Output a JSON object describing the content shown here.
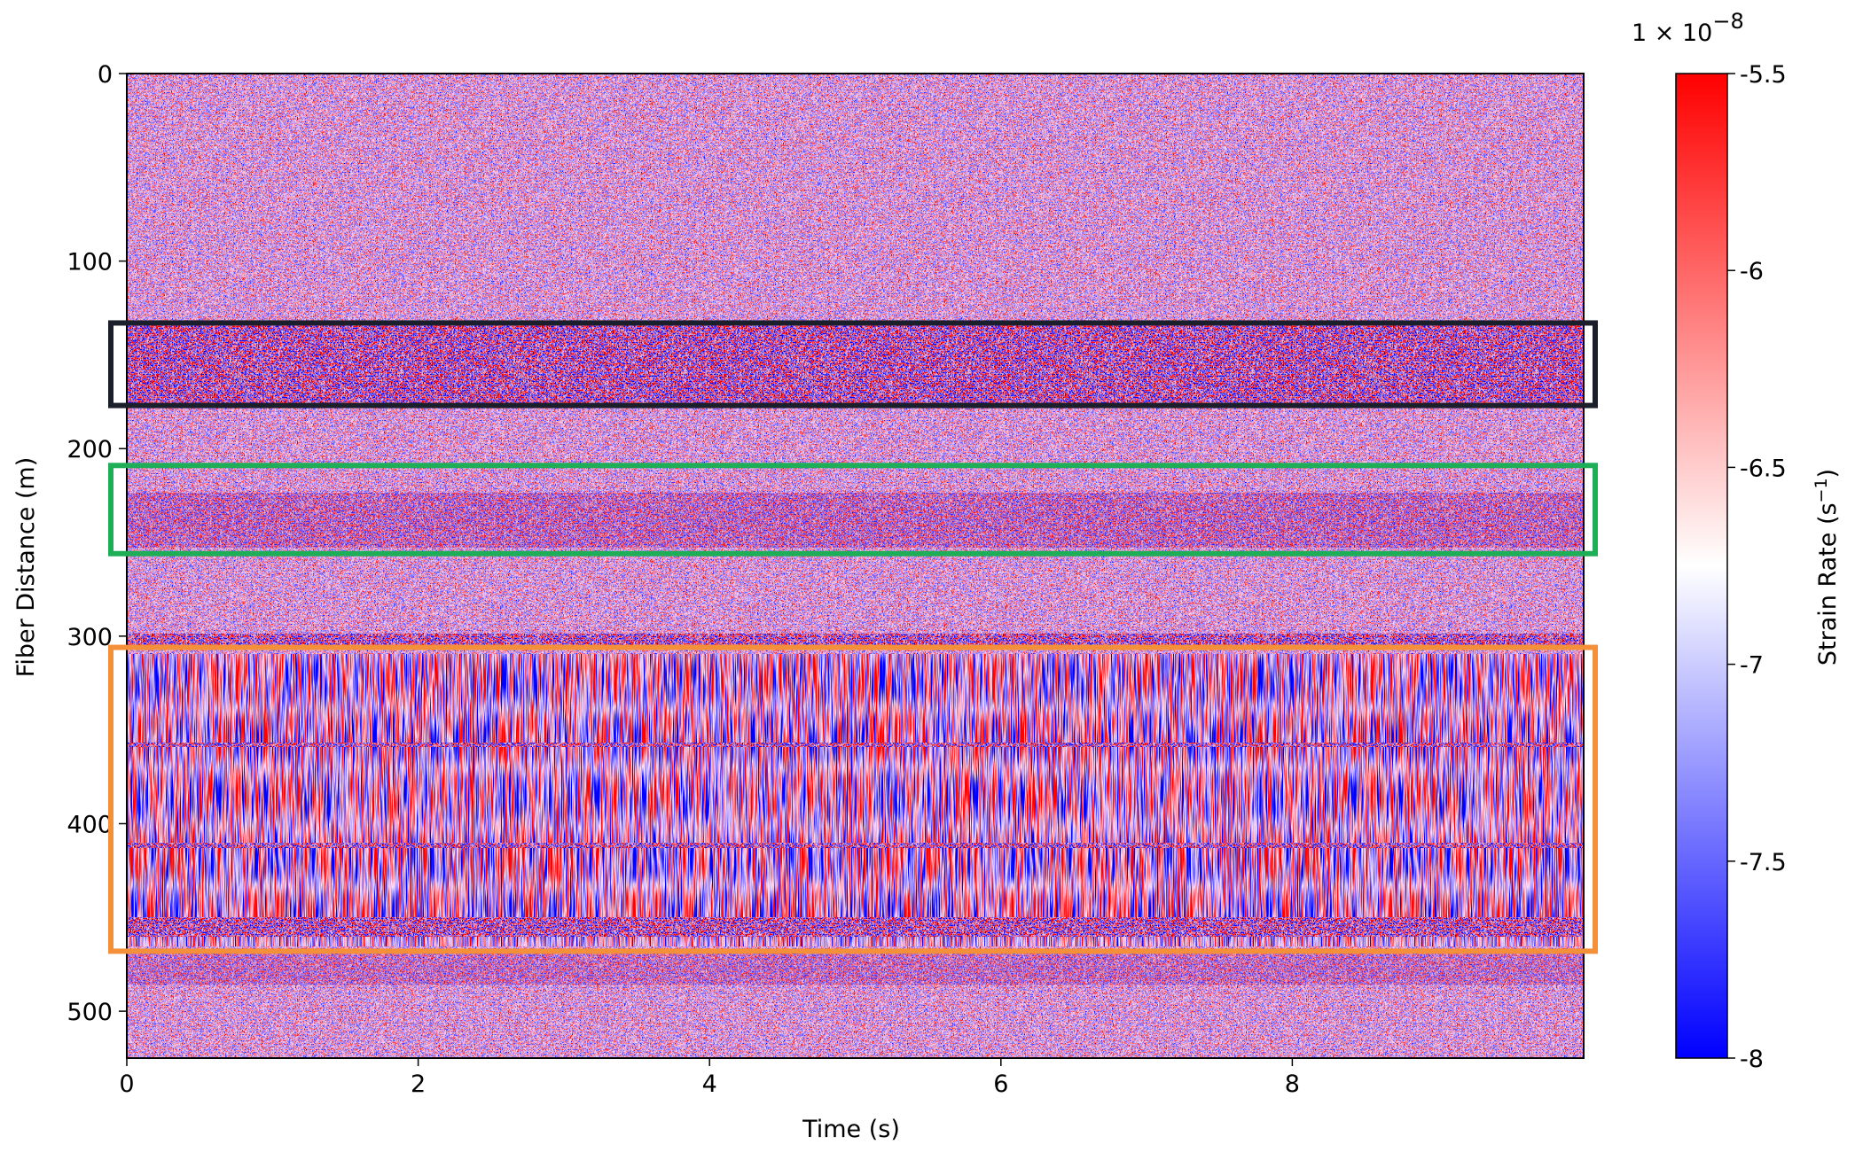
{
  "chart_data": {
    "type": "heatmap",
    "x_label": "Time (s)",
    "y_label": "Fiber Distance (m)",
    "xlim": [
      0,
      10
    ],
    "xticks": [
      0,
      2,
      4,
      6,
      8
    ],
    "ylim": [
      525,
      0
    ],
    "yticks": [
      0,
      100,
      200,
      300,
      400,
      500
    ],
    "colormap": "bwr",
    "colorbar": {
      "label": [
        "Strain Rate (s",
        "−1",
        ")"
      ],
      "offset_text": [
        "1 × 10",
        "−8"
      ],
      "clim": [
        -8,
        -5.5
      ],
      "ticks": [
        -8,
        -7.5,
        -7,
        -6.5,
        -6,
        -5.5
      ]
    },
    "regions": [
      {
        "color": "#1b1e2b",
        "ylim": [
          133,
          177
        ]
      },
      {
        "color": "#1fae58",
        "ylim": [
          209,
          256
        ]
      },
      {
        "color": "#f5903a",
        "ylim": [
          306,
          468
        ]
      }
    ]
  }
}
